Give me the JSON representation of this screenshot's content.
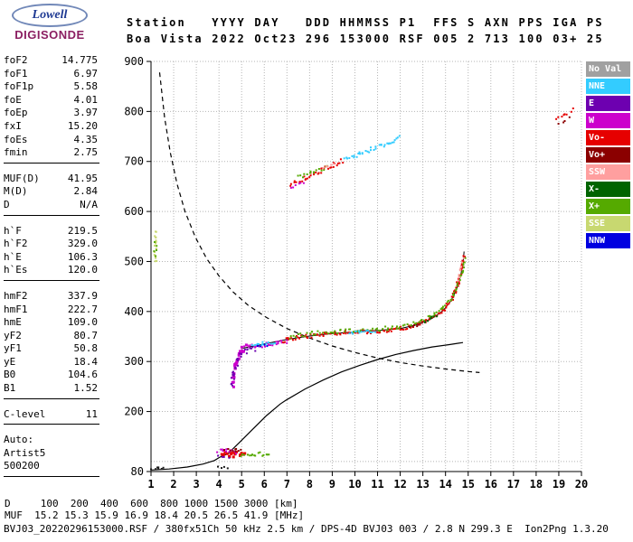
{
  "logo": {
    "name": "Lowell",
    "product": "DIGISONDE"
  },
  "header": {
    "line1": "Station   YYYY DAY   DDD HHMMSS P1  FFS S AXN PPS IGA PS",
    "line2": "Boa Vista 2022 Oct23 296 153000 RSF 005 2 713 100 03+ 25"
  },
  "panel": {
    "groups": [
      {
        "rows": [
          [
            "foF2",
            "14.775"
          ],
          [
            "foF1",
            "6.97"
          ],
          [
            "foF1p",
            "5.58"
          ],
          [
            "foE",
            "4.01"
          ],
          [
            "foEp",
            "3.97"
          ],
          [
            "fxI",
            "15.20"
          ],
          [
            "foEs",
            "4.35"
          ],
          [
            "fmin",
            "2.75"
          ]
        ]
      },
      {
        "rows": [
          [
            "MUF(D)",
            "41.95"
          ],
          [
            "M(D)",
            "2.84"
          ],
          [
            "D",
            "N/A"
          ]
        ]
      },
      {
        "rows": [
          [
            "h`F",
            "219.5"
          ],
          [
            "h`F2",
            "329.0"
          ],
          [
            "h`E",
            "106.3"
          ],
          [
            "h`Es",
            "120.0"
          ]
        ]
      },
      {
        "rows": [
          [
            "hmF2",
            "337.9"
          ],
          [
            "hmF1",
            "222.7"
          ],
          [
            "hmE",
            "109.0"
          ],
          [
            "yF2",
            "80.7"
          ],
          [
            "yF1",
            "50.8"
          ],
          [
            "yE",
            "18.4"
          ],
          [
            "B0",
            "104.6"
          ],
          [
            "B1",
            "1.52"
          ]
        ]
      },
      {
        "rows": [
          [
            "C-level",
            "11"
          ]
        ]
      },
      {
        "rows": [
          [
            "Auto:",
            ""
          ],
          [
            "Artist5",
            ""
          ],
          [
            "500200",
            ""
          ]
        ]
      }
    ]
  },
  "legend": {
    "items": [
      {
        "label": "No Val",
        "color": "#a0a0a0"
      },
      {
        "label": "NNE",
        "color": "#33ccff"
      },
      {
        "label": "E",
        "color": "#6d00b0"
      },
      {
        "label": "W",
        "color": "#cc00cc"
      },
      {
        "label": "Vo-",
        "color": "#e60000"
      },
      {
        "label": "Vo+",
        "color": "#8b0000"
      },
      {
        "label": "SSW",
        "color": "#ff9f9f"
      },
      {
        "label": "X-",
        "color": "#006400"
      },
      {
        "label": "X+",
        "color": "#55aa00"
      },
      {
        "label": "SSE",
        "color": "#c8d870"
      },
      {
        "label": "NNW",
        "color": "#0000e0"
      }
    ]
  },
  "chart_data": {
    "type": "scatter",
    "title": "Digisonde ionogram Boa Vista 2022 Oct23 296 153000",
    "x_axis": {
      "min": 1,
      "max": 20,
      "unit": "MHz",
      "ticks": [
        1,
        2,
        3,
        4,
        5,
        6,
        7,
        8,
        9,
        10,
        11,
        12,
        13,
        14,
        15,
        16,
        17,
        18,
        19,
        20
      ]
    },
    "y_axis": {
      "min": 80,
      "max": 900,
      "unit": "km",
      "tick_labels": [
        900,
        800,
        700,
        600,
        500,
        400,
        300,
        200,
        80
      ]
    },
    "grid": true,
    "curves": {
      "muf_transmission": {
        "style": "dashed",
        "points": [
          [
            1.38,
            878
          ],
          [
            1.6,
            788
          ],
          [
            1.85,
            718
          ],
          [
            2.15,
            655
          ],
          [
            2.5,
            600
          ],
          [
            2.95,
            549
          ],
          [
            3.45,
            506
          ],
          [
            4.0,
            471
          ],
          [
            4.6,
            440
          ],
          [
            5.3,
            412
          ],
          [
            6.1,
            388
          ],
          [
            7.0,
            366
          ],
          [
            8.0,
            347
          ],
          [
            9.0,
            331
          ],
          [
            10.0,
            318
          ],
          [
            11.0,
            307
          ],
          [
            12.0,
            298
          ],
          [
            13.0,
            291
          ],
          [
            14.0,
            285
          ],
          [
            15.0,
            280
          ],
          [
            15.5,
            278
          ]
        ]
      },
      "true_height_profile": {
        "style": "solid",
        "points": [
          [
            1.0,
            83
          ],
          [
            1.8,
            85
          ],
          [
            2.6,
            89
          ],
          [
            3.3,
            95
          ],
          [
            3.8,
            102
          ],
          [
            4.01,
            108
          ],
          [
            4.4,
            116
          ],
          [
            4.9,
            138
          ],
          [
            5.5,
            165
          ],
          [
            6.1,
            192
          ],
          [
            6.7,
            215
          ],
          [
            6.97,
            223
          ],
          [
            7.8,
            245
          ],
          [
            8.6,
            263
          ],
          [
            9.4,
            279
          ],
          [
            10.2,
            292
          ],
          [
            11.0,
            304
          ],
          [
            11.8,
            314
          ],
          [
            12.6,
            322
          ],
          [
            13.4,
            329
          ],
          [
            14.2,
            334
          ],
          [
            14.77,
            338
          ]
        ]
      },
      "fitted_trace": {
        "style": "solid",
        "points": [
          [
            5.0,
            326
          ],
          [
            6.0,
            335
          ],
          [
            7.0,
            344
          ],
          [
            8.0,
            351
          ],
          [
            9.0,
            356
          ],
          [
            10.0,
            359
          ],
          [
            11.0,
            362
          ],
          [
            12.0,
            366
          ],
          [
            12.7,
            373
          ],
          [
            13.4,
            386
          ],
          [
            13.9,
            402
          ],
          [
            14.25,
            422
          ],
          [
            14.5,
            446
          ],
          [
            14.68,
            474
          ],
          [
            14.79,
            505
          ],
          [
            14.82,
            520
          ]
        ]
      }
    },
    "traces": [
      {
        "name": "es-omode",
        "color": "Vo-",
        "spread": 5,
        "step": 1.6,
        "size": 3,
        "points": [
          [
            4.1,
            115
          ],
          [
            4.5,
            113
          ],
          [
            4.95,
            116
          ],
          [
            5.15,
            114
          ]
        ]
      },
      {
        "name": "es-west",
        "color": "W",
        "spread": 4,
        "step": 2,
        "points": [
          [
            3.95,
            120
          ],
          [
            4.35,
            121
          ],
          [
            4.75,
            119
          ]
        ]
      },
      {
        "name": "es-xmode",
        "color": "X+",
        "spread": 4,
        "step": 2.4,
        "points": [
          [
            4.95,
            113
          ],
          [
            5.6,
            114
          ],
          [
            6.25,
            116
          ]
        ]
      },
      {
        "name": "es-east",
        "color": "E",
        "spread": 3,
        "step": 3,
        "points": [
          [
            4.0,
            109
          ],
          [
            4.4,
            108
          ]
        ]
      },
      {
        "name": "es-dark",
        "color": "Vo+",
        "spread": 3,
        "step": 2.6,
        "points": [
          [
            4.25,
            122
          ],
          [
            4.7,
            123
          ],
          [
            5.0,
            121
          ]
        ]
      },
      {
        "name": "f1-cusp-west",
        "color": "W",
        "spread": 7,
        "step": 1.8,
        "size": 3,
        "points": [
          [
            4.62,
            250
          ],
          [
            4.72,
            285
          ],
          [
            4.84,
            308
          ],
          [
            4.98,
            320
          ],
          [
            5.15,
            327
          ]
        ]
      },
      {
        "name": "f1-cusp-east",
        "color": "E",
        "spread": 6,
        "step": 2.2,
        "points": [
          [
            4.55,
            252
          ],
          [
            4.66,
            278
          ],
          [
            4.8,
            300
          ],
          [
            4.95,
            314
          ],
          [
            5.25,
            322
          ],
          [
            5.55,
            327
          ]
        ]
      },
      {
        "name": "f-west-mid",
        "color": "W",
        "spread": 4,
        "step": 2,
        "points": [
          [
            5.15,
            328
          ],
          [
            5.65,
            331
          ],
          [
            6.15,
            334
          ],
          [
            6.65,
            338
          ],
          [
            7.05,
            341
          ]
        ]
      },
      {
        "name": "f-cyan-low",
        "color": "NNE",
        "spread": 3,
        "step": 2,
        "points": [
          [
            5.45,
            333
          ],
          [
            5.95,
            336
          ],
          [
            6.45,
            339
          ]
        ]
      },
      {
        "name": "f-blue-bits",
        "color": "NNW",
        "spread": 2,
        "step": 3,
        "points": [
          [
            5.75,
            330
          ],
          [
            6.1,
            332
          ]
        ]
      },
      {
        "name": "f-omode",
        "color": "Vo-",
        "spread": 4,
        "step": 1.8,
        "points": [
          [
            6.8,
            342
          ],
          [
            7.6,
            349
          ],
          [
            8.6,
            354
          ],
          [
            9.6,
            358
          ],
          [
            10.6,
            360
          ],
          [
            11.5,
            363
          ],
          [
            12.2,
            367
          ],
          [
            12.9,
            376
          ],
          [
            13.5,
            389
          ],
          [
            13.95,
            405
          ],
          [
            14.3,
            427
          ],
          [
            14.55,
            455
          ],
          [
            14.7,
            483
          ],
          [
            14.8,
            512
          ]
        ]
      },
      {
        "name": "f-xmode",
        "color": "X+",
        "spread": 4,
        "step": 2.6,
        "points": [
          [
            7.1,
            349
          ],
          [
            8.1,
            356
          ],
          [
            9.1,
            360
          ],
          [
            10.1,
            363
          ],
          [
            11.1,
            365
          ],
          [
            12.0,
            369
          ],
          [
            12.7,
            377
          ],
          [
            13.3,
            389
          ],
          [
            13.8,
            404
          ],
          [
            14.2,
            423
          ],
          [
            14.5,
            448
          ],
          [
            14.72,
            478
          ],
          [
            14.88,
            506
          ]
        ]
      },
      {
        "name": "f-cyan-mid",
        "color": "NNE",
        "spread": 3,
        "step": 2,
        "points": [
          [
            9.75,
            357
          ],
          [
            10.25,
            359
          ],
          [
            10.85,
            361
          ]
        ]
      },
      {
        "name": "f-darkred-bits",
        "color": "Vo+",
        "spread": 3,
        "step": 3,
        "points": [
          [
            12.4,
            368
          ],
          [
            12.95,
            375
          ]
        ]
      },
      {
        "name": "f-top-pink",
        "color": "SSW",
        "spread": 4,
        "step": 3,
        "points": [
          [
            14.55,
            462
          ],
          [
            14.68,
            486
          ],
          [
            14.77,
            503
          ]
        ]
      },
      {
        "name": "f-darkgreen-bits",
        "color": "X-",
        "spread": 3,
        "step": 3,
        "points": [
          [
            13.1,
            381
          ],
          [
            13.65,
            392
          ]
        ]
      },
      {
        "name": "mult-omode",
        "color": "Vo-",
        "spread": 5,
        "step": 2,
        "points": [
          [
            7.15,
            655
          ],
          [
            7.8,
            668
          ],
          [
            8.5,
            682
          ],
          [
            9.1,
            694
          ],
          [
            9.5,
            701
          ]
        ]
      },
      {
        "name": "mult-west",
        "color": "W",
        "spread": 4,
        "step": 3,
        "points": [
          [
            7.2,
            648
          ],
          [
            7.75,
            658
          ]
        ]
      },
      {
        "name": "mult-xmode",
        "color": "X+",
        "spread": 4,
        "step": 2.8,
        "points": [
          [
            7.5,
            668
          ],
          [
            8.2,
            680
          ],
          [
            8.8,
            690
          ]
        ]
      },
      {
        "name": "mult-cyan",
        "color": "NNE",
        "spread": 4,
        "step": 2,
        "points": [
          [
            9.55,
            704
          ],
          [
            10.2,
            715
          ],
          [
            10.9,
            727
          ],
          [
            11.55,
            739
          ],
          [
            11.95,
            748
          ]
        ]
      },
      {
        "name": "mult-pink",
        "color": "SSW",
        "spread": 3,
        "step": 3,
        "points": [
          [
            8.6,
            688
          ],
          [
            9.05,
            695
          ]
        ]
      },
      {
        "name": "spread-f-red",
        "color": "Vo-",
        "spread": 5,
        "step": 3.5,
        "points": [
          [
            18.85,
            788
          ],
          [
            19.25,
            796
          ],
          [
            19.65,
            802
          ]
        ]
      },
      {
        "name": "spread-f-dark",
        "color": "Vo+",
        "spread": 4,
        "step": 4,
        "points": [
          [
            19.0,
            779
          ],
          [
            19.45,
            787
          ]
        ]
      },
      {
        "name": "left-strip-sse",
        "color": "SSE",
        "spread": 3,
        "step": 2.4,
        "points": [
          [
            1.2,
            498
          ],
          [
            1.21,
            522
          ],
          [
            1.2,
            545
          ],
          [
            1.23,
            562
          ]
        ]
      },
      {
        "name": "left-strip-xplus",
        "color": "X+",
        "spread": 3,
        "step": 4,
        "points": [
          [
            1.18,
            512
          ],
          [
            1.21,
            538
          ]
        ]
      },
      {
        "name": "noise-bottom-left",
        "hex": "#1a1a1a",
        "spread": 2,
        "step": 3,
        "points": [
          [
            1.05,
            86
          ],
          [
            1.35,
            87
          ],
          [
            1.6,
            86
          ]
        ]
      },
      {
        "name": "noise-bottom-mid",
        "hex": "#1a1a1a",
        "spread": 2,
        "step": 3,
        "points": [
          [
            4.0,
            88
          ],
          [
            4.35,
            87
          ]
        ]
      }
    ]
  },
  "footer": {
    "d_row": "D     100  200  400  600  800 1000 1500 3000 [km]",
    "muf_row": "MUF  15.2 15.3 15.9 16.9 18.4 20.5 26.5 41.9 [MHz]",
    "info": "BVJ03_20220296153000.RSF / 380fx51Ch 50 kHz 2.5 km / DPS-4D BVJ03 003 / 2.8 N 299.3 E  Ion2Png 1.3.20"
  }
}
